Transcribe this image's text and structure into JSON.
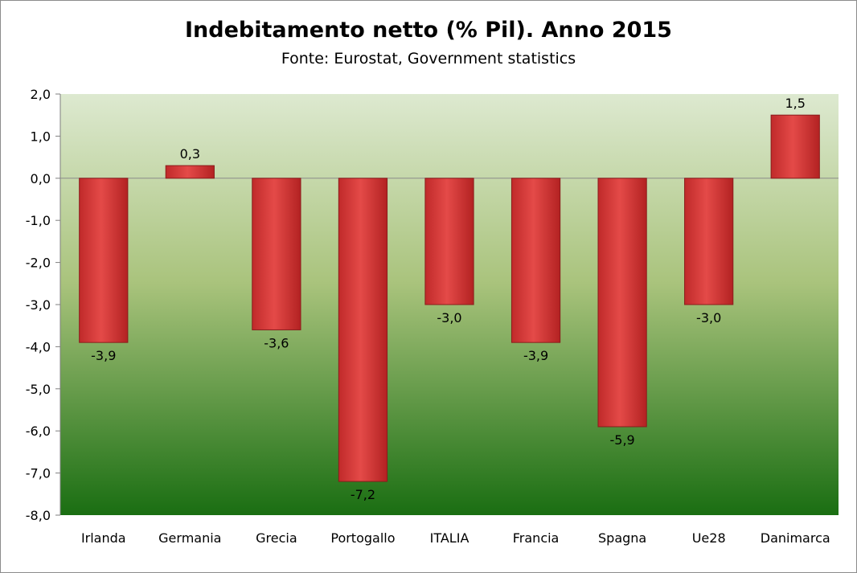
{
  "chart_data": {
    "type": "bar",
    "title": "Indebitamento netto (% Pil). Anno 2015",
    "subtitle": "Fonte: Eurostat, Government statistics",
    "categories": [
      "Irlanda",
      "Germania",
      "Grecia",
      "Portogallo",
      "ITALIA",
      "Francia",
      "Spagna",
      "Ue28",
      "Danimarca"
    ],
    "values": [
      -3.9,
      0.3,
      -3.6,
      -7.2,
      -3.0,
      -3.9,
      -5.9,
      -3.0,
      1.5
    ],
    "data_labels": [
      "-3,9",
      "0,3",
      "-3,6",
      "-7,2",
      "-3,0",
      "-3,9",
      "-5,9",
      "-3,0",
      "1,5"
    ],
    "ylim": [
      -8,
      2
    ],
    "yticks": [
      2,
      1,
      0,
      -1,
      -2,
      -3,
      -4,
      -5,
      -6,
      -7,
      -8
    ],
    "ytick_labels": [
      "2,0",
      "1,0",
      "0,0",
      "-1,0",
      "-2,0",
      "-3,0",
      "-4,0",
      "-5,0",
      "-6,0",
      "-7,0",
      "-8,0"
    ],
    "xlabel": "",
    "ylabel": "",
    "grid": false,
    "legend": "none",
    "colors": {
      "bar": "#d83a3a",
      "bar_edge": "#8a1c1c",
      "plot_bg_top": "#dde9d0",
      "plot_bg_bottom": "#1a6e12"
    }
  }
}
